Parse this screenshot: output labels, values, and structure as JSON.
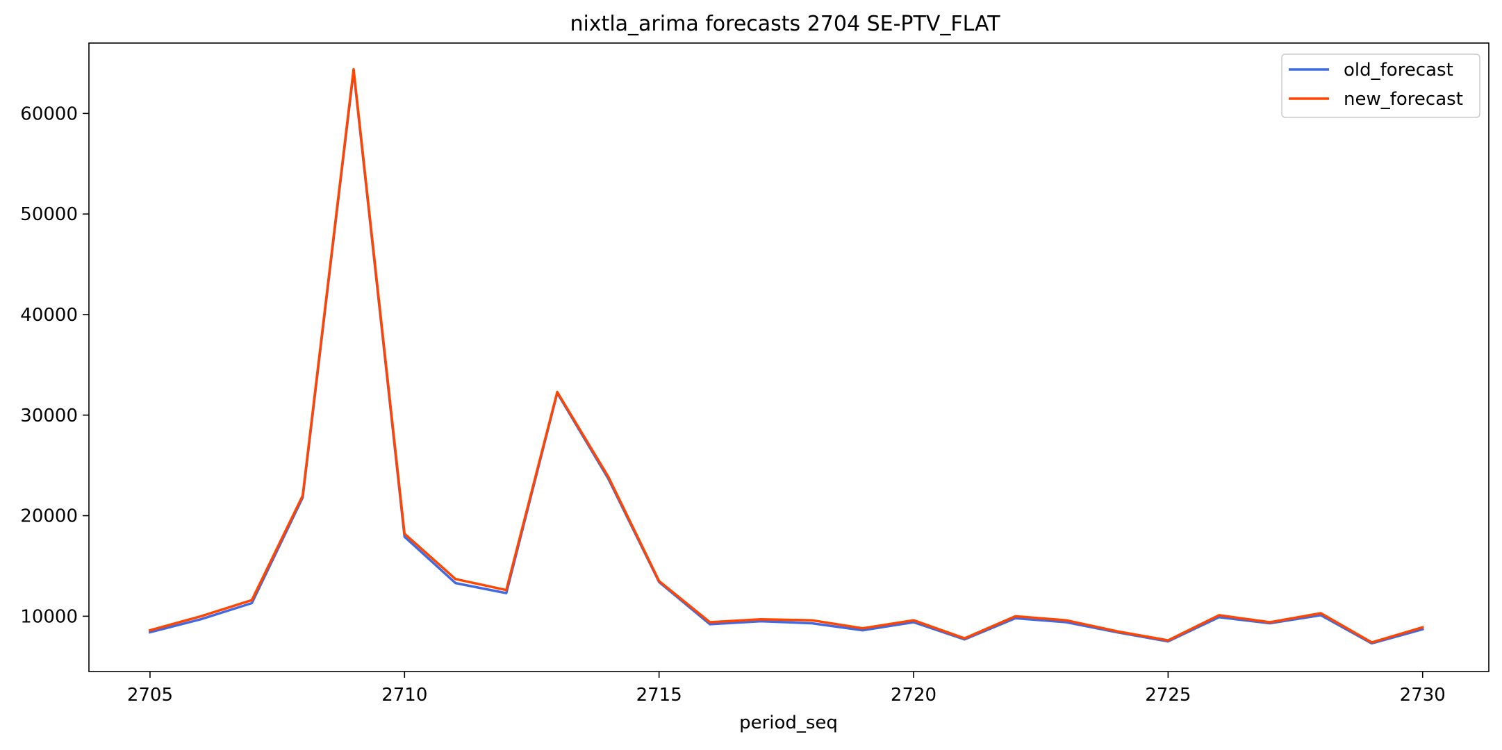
{
  "chart_data": {
    "type": "line",
    "title": "nixtla_arima forecasts 2704 SE-PTV_FLAT",
    "xlabel": "period_seq",
    "ylabel": "",
    "xlim": [
      2703.8,
      2731.3
    ],
    "ylim": [
      4500,
      67000
    ],
    "x_ticks": [
      2705,
      2710,
      2715,
      2720,
      2725,
      2730
    ],
    "y_ticks": [
      10000,
      20000,
      30000,
      40000,
      50000,
      60000
    ],
    "grid": false,
    "legend_position": "top-right",
    "x": [
      2705,
      2706,
      2707,
      2708,
      2709,
      2710,
      2711,
      2712,
      2713,
      2714,
      2715,
      2716,
      2717,
      2718,
      2719,
      2720,
      2721,
      2722,
      2723,
      2724,
      2725,
      2726,
      2727,
      2728,
      2729,
      2730
    ],
    "series": [
      {
        "name": "old_forecast",
        "color": "#4169e1",
        "values": [
          8400,
          9700,
          11300,
          21800,
          64200,
          17900,
          13300,
          12300,
          32200,
          23700,
          13400,
          9200,
          9500,
          9300,
          8600,
          9400,
          7700,
          9800,
          9400,
          8400,
          7500,
          9900,
          9300,
          10100,
          7300,
          8700
        ]
      },
      {
        "name": "new_forecast",
        "color": "#ff4500",
        "values": [
          8600,
          10000,
          11600,
          22000,
          64400,
          18200,
          13700,
          12600,
          32300,
          23900,
          13500,
          9400,
          9700,
          9600,
          8800,
          9600,
          7800,
          10000,
          9600,
          8500,
          7600,
          10100,
          9400,
          10300,
          7400,
          8900
        ]
      }
    ]
  }
}
